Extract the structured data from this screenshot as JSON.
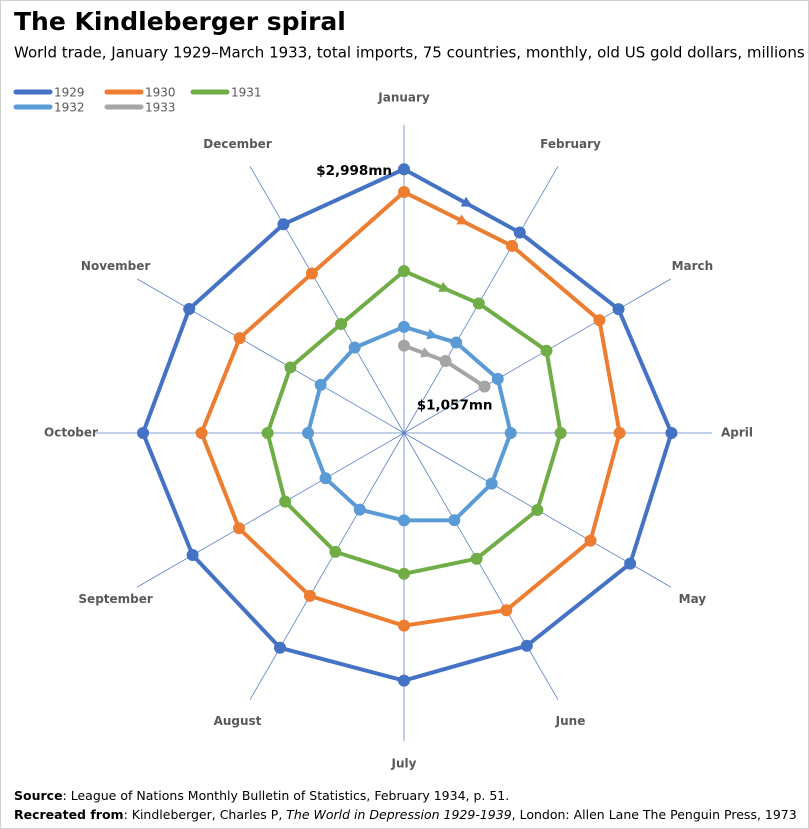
{
  "chart_data": {
    "type": "radar",
    "title": "The Kindleberger spiral",
    "subtitle": "World trade, January 1929–March 1933, total imports, 75 countries, monthly, old US gold dollars, millions",
    "categories": [
      "January",
      "February",
      "March",
      "April",
      "May",
      "June",
      "July",
      "August",
      "September",
      "October",
      "November",
      "December"
    ],
    "rlim": [
      0,
      3500
    ],
    "series": [
      {
        "name": "1929",
        "color": "#4472c4",
        "values": [
          2997.7,
          2630.3,
          2814.8,
          3039.1,
          2967.6,
          2791.0,
          2813.9,
          2818.5,
          2773.9,
          2965.4,
          2818.4,
          2738.9
        ]
      },
      {
        "name": "1930",
        "color": "#ed7d31",
        "values": [
          2738.9,
          2454.6,
          2563.9,
          2449.9,
          2447.0,
          2325.7,
          2189.5,
          2137.7,
          2164.8,
          2300.8,
          2156.0,
          2092.8
        ]
      },
      {
        "name": "1931",
        "color": "#70ad47",
        "values": [
          1840,
          1700,
          1870,
          1780,
          1750,
          1650,
          1600,
          1560,
          1560,
          1550,
          1490,
          1430
        ]
      },
      {
        "name": "1932",
        "color": "#5b9bd5",
        "values": [
          1206.0,
          1186.7,
          1230.4,
          1212.8,
          1150.5,
          1144.1,
          993.1,
          1004.9,
          1029.4,
          1090.7,
          1093.2,
          1121.2
        ]
      },
      {
        "name": "1933",
        "color": "#a5a5a5",
        "values": [
          992.4,
          944.0,
          1056.9,
          null,
          null,
          null,
          null,
          null,
          null,
          null,
          null,
          null
        ]
      }
    ],
    "annotations": [
      {
        "text": "$2,998mn",
        "series": 0,
        "index": 0
      },
      {
        "text": "$1,057mn",
        "series": 4,
        "index": 2
      }
    ],
    "footer": {
      "source_label": "Source",
      "source_text": ": League of Nations Monthly Bulletin of Statistics, February 1934, p. 51.",
      "recreated_label": "Recreated from",
      "recreated_text": ": Kindleberger, Charles P, ",
      "recreated_title": "The World in Depression 1929-1939",
      "recreated_rest": ", London: Allen Lane The Penguin Press, 1973"
    }
  }
}
